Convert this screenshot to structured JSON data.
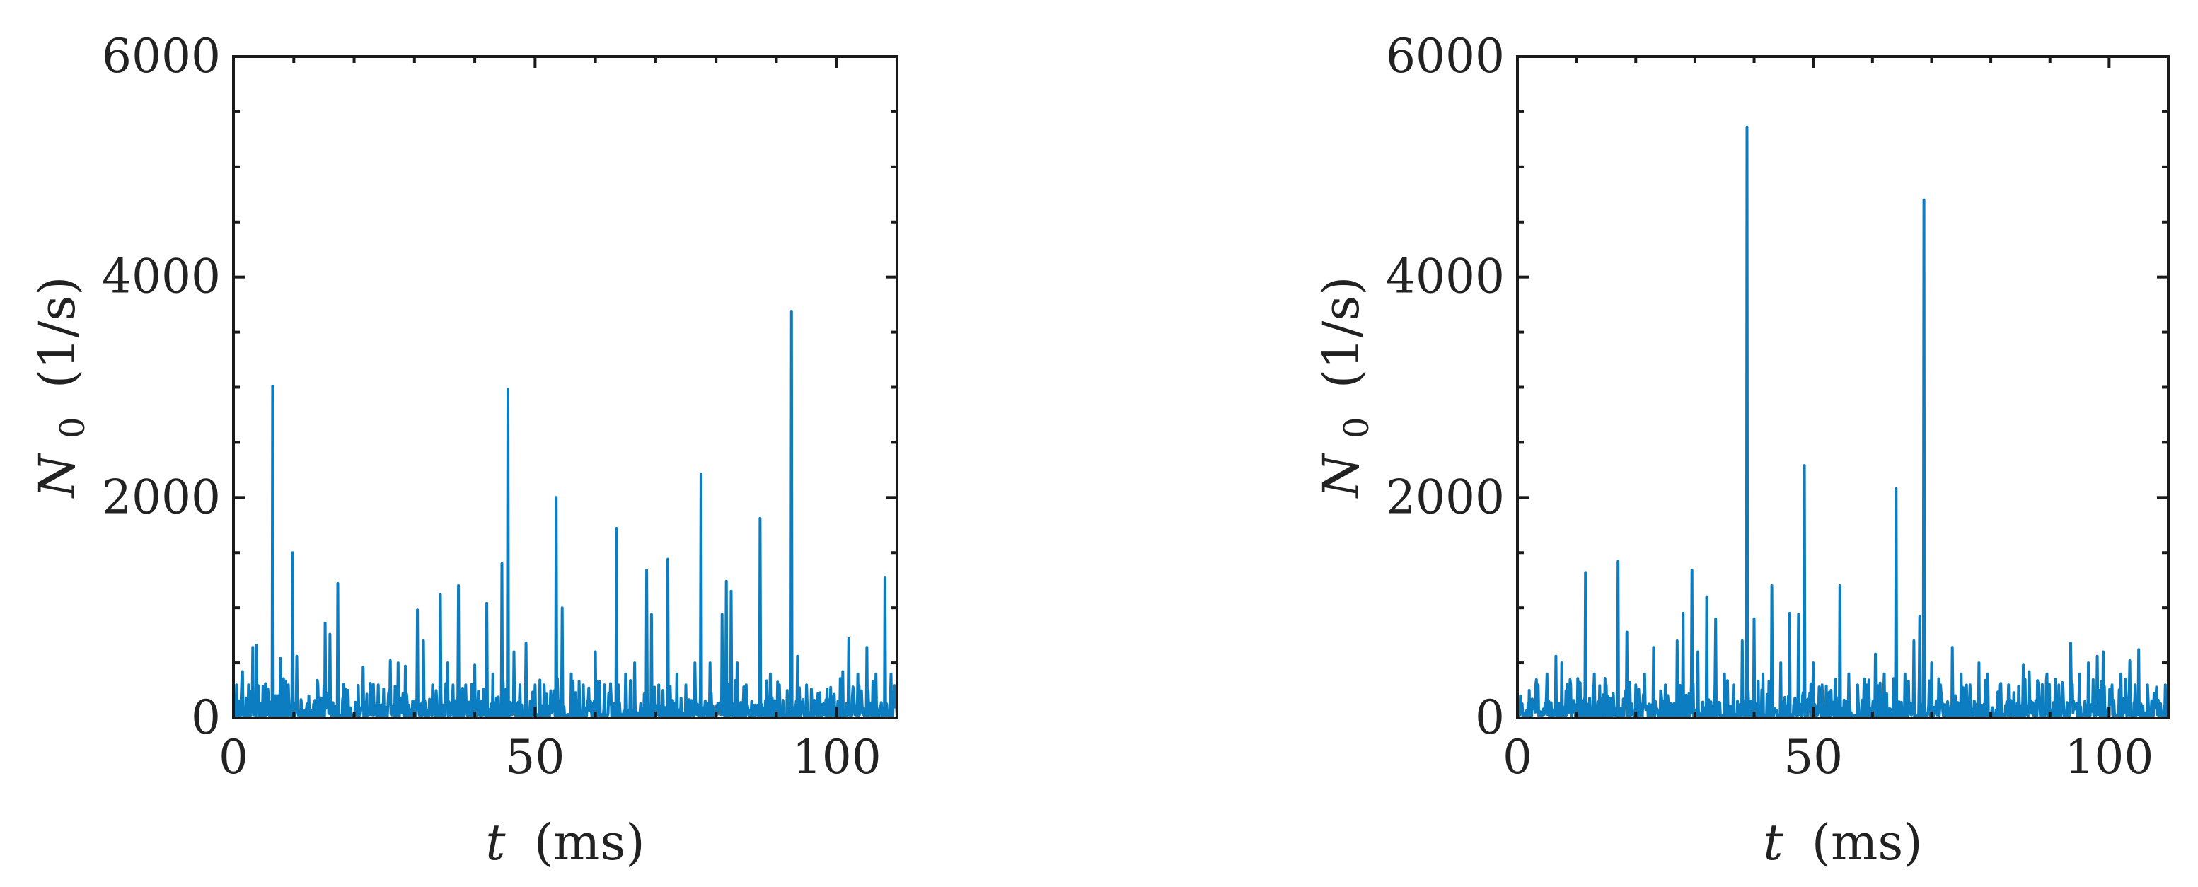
{
  "chart_data": [
    {
      "type": "line",
      "xlabel_var": "t",
      "xlabel_unit": "(ms)",
      "ylabel_var": "N",
      "ylabel_sub": "0",
      "ylabel_unit": "(1/s)",
      "xlim": [
        0,
        110
      ],
      "ylim": [
        0,
        6000
      ],
      "xticks": [
        "0",
        "50",
        "100"
      ],
      "yticks": [
        "0",
        "2000",
        "4000",
        "6000"
      ],
      "grid": false,
      "color": "#0b7dc0",
      "series": [
        {
          "peaks": [
            [
              0.5,
              300
            ],
            [
              1.5,
              420
            ],
            [
              2.5,
              300
            ],
            [
              3.2,
              640
            ],
            [
              3.8,
              660
            ],
            [
              5.0,
              180
            ],
            [
              6.5,
              3010
            ],
            [
              7.8,
              540
            ],
            [
              9.8,
              1500
            ],
            [
              10.5,
              560
            ],
            [
              12.5,
              200
            ],
            [
              14.0,
              300
            ],
            [
              15.2,
              860
            ],
            [
              16.0,
              760
            ],
            [
              17.3,
              1220
            ],
            [
              19.0,
              250
            ],
            [
              21.5,
              460
            ],
            [
              24.0,
              300
            ],
            [
              26.0,
              520
            ],
            [
              27.3,
              500
            ],
            [
              28.5,
              470
            ],
            [
              30.5,
              980
            ],
            [
              31.5,
              700
            ],
            [
              33.0,
              300
            ],
            [
              34.3,
              1120
            ],
            [
              35.5,
              500
            ],
            [
              37.3,
              1200
            ],
            [
              38.5,
              300
            ],
            [
              40.0,
              480
            ],
            [
              42.0,
              1040
            ],
            [
              43.0,
              400
            ],
            [
              44.5,
              1400
            ],
            [
              45.5,
              2980
            ],
            [
              46.5,
              600
            ],
            [
              47.5,
              300
            ],
            [
              48.5,
              680
            ],
            [
              50.0,
              300
            ],
            [
              51.5,
              300
            ],
            [
              53.5,
              2000
            ],
            [
              54.5,
              1000
            ],
            [
              56.0,
              400
            ],
            [
              58.0,
              300
            ],
            [
              60.0,
              600
            ],
            [
              61.5,
              300
            ],
            [
              63.5,
              1720
            ],
            [
              65.0,
              400
            ],
            [
              66.5,
              500
            ],
            [
              68.5,
              1340
            ],
            [
              69.3,
              940
            ],
            [
              70.5,
              300
            ],
            [
              72.0,
              1440
            ],
            [
              73.5,
              400
            ],
            [
              75.0,
              300
            ],
            [
              76.5,
              500
            ],
            [
              77.5,
              2210
            ],
            [
              79.0,
              500
            ],
            [
              81.0,
              940
            ],
            [
              81.7,
              1240
            ],
            [
              82.5,
              1150
            ],
            [
              83.5,
              500
            ],
            [
              85.0,
              300
            ],
            [
              87.3,
              1810
            ],
            [
              89.0,
              400
            ],
            [
              90.5,
              300
            ],
            [
              92.5,
              3690
            ],
            [
              93.5,
              560
            ],
            [
              95.0,
              300
            ],
            [
              97.0,
              200
            ],
            [
              99.5,
              200
            ],
            [
              101.0,
              420
            ],
            [
              102.0,
              720
            ],
            [
              103.5,
              400
            ],
            [
              105.0,
              640
            ],
            [
              106.5,
              400
            ],
            [
              108.0,
              1270
            ],
            [
              109.0,
              400
            ]
          ]
        }
      ]
    },
    {
      "type": "line",
      "xlabel_var": "t",
      "xlabel_unit": "(ms)",
      "ylabel_var": "N",
      "ylabel_sub": "0",
      "ylabel_unit": "(1/s)",
      "xlim": [
        0,
        110
      ],
      "ylim": [
        0,
        6000
      ],
      "xticks": [
        "0",
        "50",
        "100"
      ],
      "yticks": [
        "0",
        "2000",
        "4000",
        "6000"
      ],
      "grid": false,
      "color": "#0b7dc0",
      "series": [
        {
          "peaks": [
            [
              0.5,
              200
            ],
            [
              2.0,
              250
            ],
            [
              3.5,
              300
            ],
            [
              5.0,
              400
            ],
            [
              6.5,
              560
            ],
            [
              7.5,
              500
            ],
            [
              9.0,
              300
            ],
            [
              11.5,
              1320
            ],
            [
              13.0,
              400
            ],
            [
              15.0,
              300
            ],
            [
              17.0,
              1420
            ],
            [
              18.5,
              780
            ],
            [
              20.0,
              300
            ],
            [
              21.5,
              400
            ],
            [
              23.0,
              640
            ],
            [
              25.0,
              300
            ],
            [
              27.0,
              700
            ],
            [
              28.0,
              950
            ],
            [
              29.5,
              1340
            ],
            [
              30.5,
              600
            ],
            [
              32.0,
              1100
            ],
            [
              33.5,
              900
            ],
            [
              35.0,
              400
            ],
            [
              36.5,
              300
            ],
            [
              38.0,
              700
            ],
            [
              38.8,
              5360
            ],
            [
              40.0,
              900
            ],
            [
              41.5,
              400
            ],
            [
              43.0,
              1200
            ],
            [
              44.5,
              500
            ],
            [
              46.0,
              950
            ],
            [
              47.5,
              940
            ],
            [
              48.5,
              2290
            ],
            [
              50.0,
              500
            ],
            [
              51.5,
              300
            ],
            [
              53.0,
              250
            ],
            [
              54.5,
              1200
            ],
            [
              56.0,
              400
            ],
            [
              57.5,
              300
            ],
            [
              59.0,
              300
            ],
            [
              60.5,
              580
            ],
            [
              62.0,
              400
            ],
            [
              64.0,
              2080
            ],
            [
              65.5,
              400
            ],
            [
              67.0,
              700
            ],
            [
              68.0,
              920
            ],
            [
              68.7,
              4700
            ],
            [
              70.0,
              500
            ],
            [
              71.5,
              300
            ],
            [
              73.5,
              640
            ],
            [
              75.0,
              400
            ],
            [
              76.5,
              300
            ],
            [
              78.0,
              500
            ],
            [
              79.5,
              400
            ],
            [
              81.5,
              300
            ],
            [
              83.0,
              300
            ],
            [
              85.5,
              480
            ],
            [
              86.5,
              420
            ],
            [
              88.0,
              300
            ],
            [
              89.5,
              400
            ],
            [
              91.5,
              300
            ],
            [
              93.5,
              680
            ],
            [
              95.0,
              400
            ],
            [
              96.5,
              500
            ],
            [
              98.0,
              560
            ],
            [
              99.0,
              600
            ],
            [
              100.5,
              300
            ],
            [
              102.0,
              400
            ],
            [
              103.5,
              520
            ],
            [
              105.0,
              620
            ],
            [
              106.5,
              300
            ],
            [
              108.0,
              280
            ],
            [
              109.5,
              300
            ]
          ]
        }
      ]
    }
  ]
}
